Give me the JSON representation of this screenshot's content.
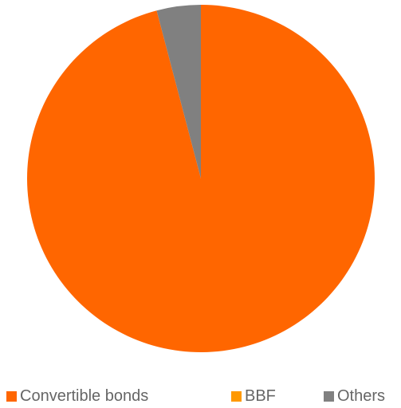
{
  "chart_data": {
    "type": "pie",
    "slices": [
      {
        "label": "Convertible bonds",
        "value": 95.9,
        "color": "#FF6600"
      },
      {
        "label": "BBF",
        "value": 0.0,
        "color": "#FF9900"
      },
      {
        "label": "Others",
        "value": 4.1,
        "color": "#808080"
      }
    ],
    "start_angle_deg": 0,
    "direction": "clockwise",
    "legend_position": "bottom"
  }
}
